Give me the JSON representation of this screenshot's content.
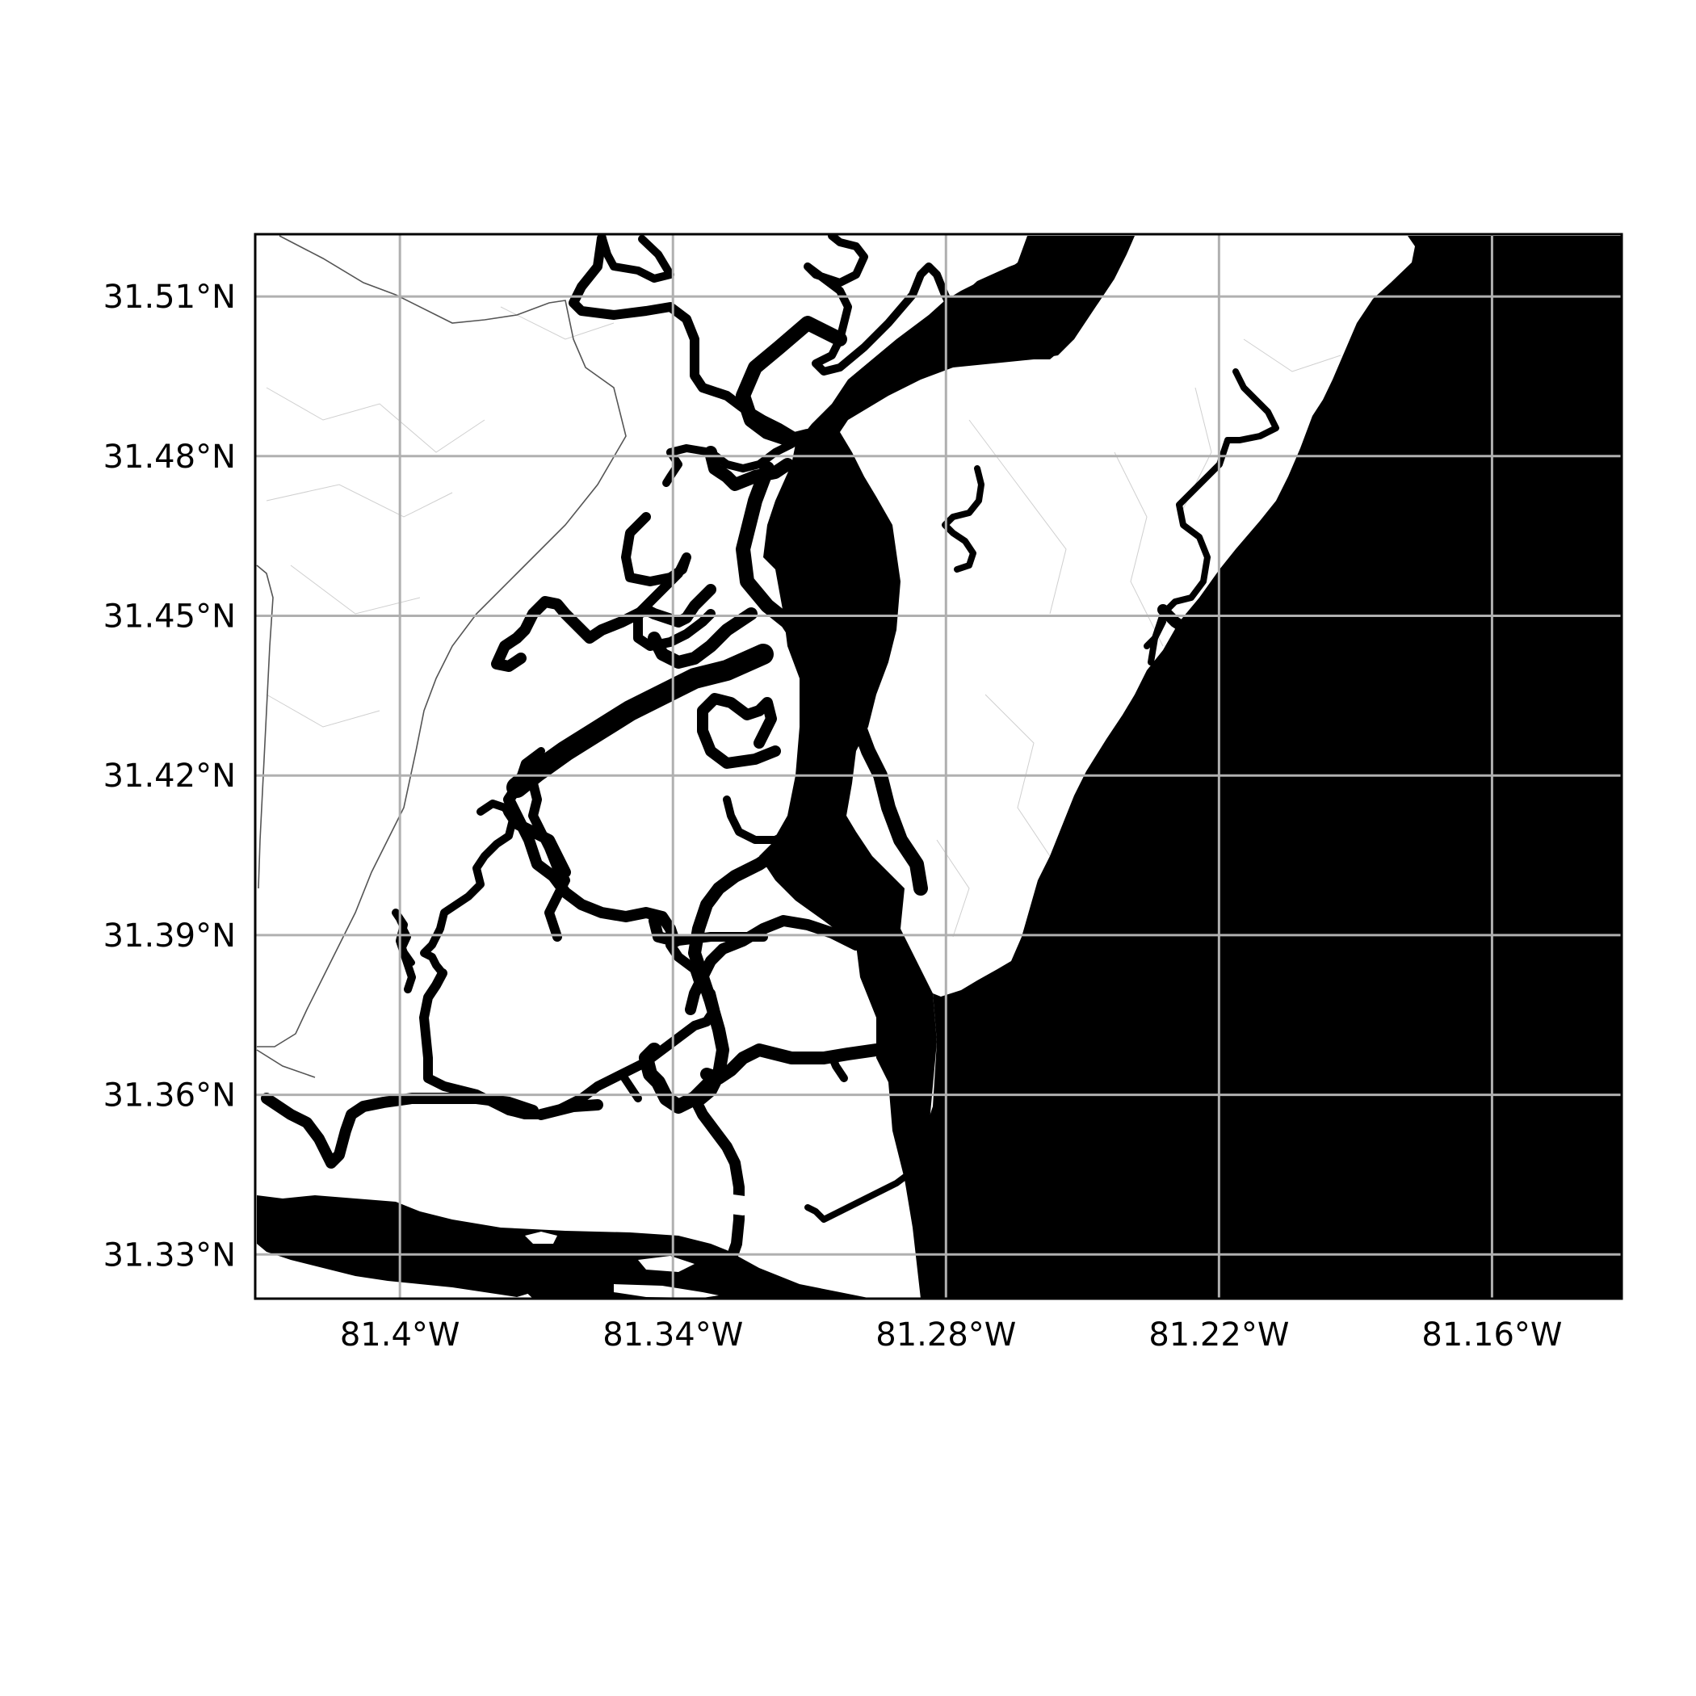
{
  "map": {
    "bounds": {
      "lon_min": -81.4318,
      "lon_max": -81.1315,
      "lat_min": 31.3217,
      "lat_max": 31.5217
    },
    "x_ticks": [
      {
        "lon": -81.4,
        "label": "81.4°W"
      },
      {
        "lon": -81.34,
        "label": "81.34°W"
      },
      {
        "lon": -81.28,
        "label": "81.28°W"
      },
      {
        "lon": -81.22,
        "label": "81.22°W"
      },
      {
        "lon": -81.16,
        "label": "81.16°W"
      }
    ],
    "y_ticks": [
      {
        "lat": 31.51,
        "label": "31.51°N"
      },
      {
        "lat": 31.48,
        "label": "31.48°N"
      },
      {
        "lat": 31.45,
        "label": "31.45°N"
      },
      {
        "lat": 31.42,
        "label": "31.42°N"
      },
      {
        "lat": 31.39,
        "label": "31.39°N"
      },
      {
        "lat": 31.36,
        "label": "31.36°N"
      },
      {
        "lat": 31.33,
        "label": "31.33°N"
      }
    ],
    "grid": true,
    "colors": {
      "water": "#000000",
      "land": "#ffffff",
      "grid": "#b0b0b0",
      "frame": "#000000"
    }
  }
}
